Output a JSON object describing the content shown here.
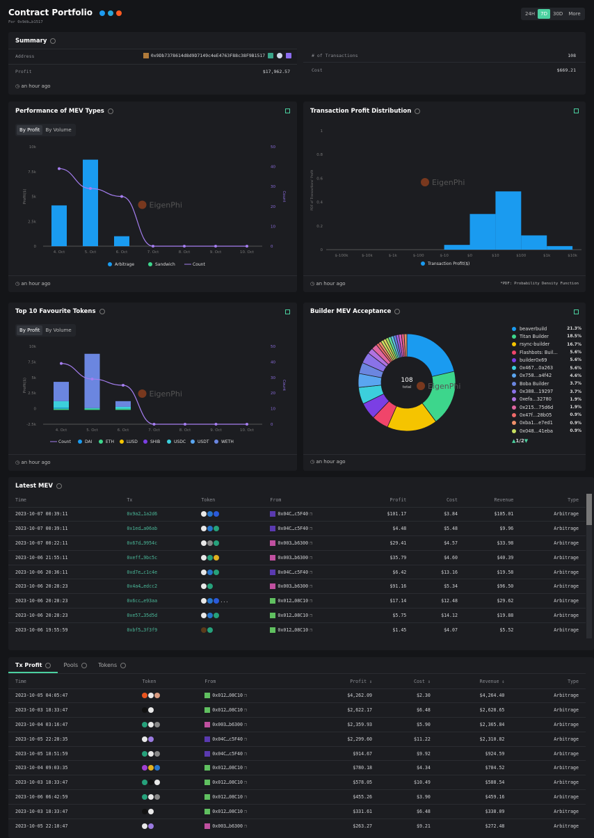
{
  "header": {
    "title": "Contract Portfolio",
    "subtitle": "For 0x9db…b1517",
    "social_icons": [
      "twitter-icon",
      "telegram-icon",
      "reddit-icon"
    ],
    "ranges": [
      "24H",
      "7D",
      "30D",
      "More"
    ],
    "active_range": "7D"
  },
  "summary": {
    "title": "Summary",
    "address_label": "Address",
    "address": "0x9Db7378614d8d9D7149c4eE4763F88c38F9B1517",
    "profit_label": "Profit",
    "profit": "$17,962.57",
    "tx_label": "# of Transactions",
    "tx_count": "108",
    "cost_label": "Cost",
    "cost": "$669.21",
    "updated": "an hour ago"
  },
  "mev_types": {
    "title": "Performance of MEV Types",
    "toggle": [
      "By Profit",
      "By Volume"
    ],
    "updated": "an hour ago"
  },
  "profit_dist": {
    "title": "Transaction Profit Distribution",
    "updated": "an hour ago",
    "footnote": "*PDF: Probability Density Function"
  },
  "fav_tokens": {
    "title": "Top 10 Favourite Tokens",
    "toggle": [
      "By Profit",
      "By Volume"
    ],
    "updated": "an hour ago"
  },
  "builder": {
    "title": "Builder MEV Acceptance",
    "updated": "an hour ago"
  },
  "watermark": "EigenPhi",
  "chart_data": [
    {
      "type": "bar",
      "title": "Performance of MEV Types",
      "categories": [
        "4. Oct",
        "5. Oct",
        "6. Oct",
        "7. Oct",
        "8. Oct",
        "9. Oct",
        "10. Oct"
      ],
      "series": [
        {
          "name": "Arbitrage",
          "color": "#1a9bf0",
          "values": [
            4100,
            8700,
            1000,
            0,
            0,
            0,
            0
          ]
        },
        {
          "name": "Sandwich",
          "color": "#3dd68c",
          "values": [
            0,
            0,
            0,
            0,
            0,
            0,
            0
          ]
        },
        {
          "name": "Count",
          "type": "line",
          "axis": "right",
          "color": "#a57ef0",
          "values": [
            39,
            29,
            25,
            0,
            0,
            0,
            0
          ]
        }
      ],
      "ylabel": "Profit($)",
      "y2label": "Count",
      "ylim": [
        0,
        10000
      ],
      "y2lim": [
        0,
        50
      ],
      "yticks": [
        "0",
        "2.5k",
        "5k",
        "7.5k",
        "10k"
      ],
      "y2ticks": [
        "0",
        "10",
        "20",
        "30",
        "40",
        "50"
      ],
      "legend": "bottom"
    },
    {
      "type": "bar",
      "title": "Transaction Profit Distribution",
      "categories": [
        "$-100k",
        "$-10k",
        "$-1k",
        "$-100",
        "$-10",
        "$0",
        "$10",
        "$100",
        "$1k",
        "$10k"
      ],
      "bins": [
        {
          "from": "$-10",
          "to": "$0",
          "pdf": 0.04
        },
        {
          "from": "$0",
          "to": "$10",
          "pdf": 0.3
        },
        {
          "from": "$10",
          "to": "$100",
          "pdf": 0.49
        },
        {
          "from": "$100",
          "to": "$1k",
          "pdf": 0.12
        },
        {
          "from": "$1k",
          "to": "$10k",
          "pdf": 0.03
        }
      ],
      "series_name": "Transaction Profit($)",
      "ylabel": "PDF of Transactions' Profit",
      "ylim": [
        0,
        1
      ],
      "yticks": [
        "0",
        "0.2",
        "0.4",
        "0.6",
        "0.8",
        "1"
      ],
      "legend": "bottom"
    },
    {
      "type": "bar",
      "title": "Top 10 Favourite Tokens",
      "stacked": true,
      "categories": [
        "4. Oct",
        "5. Oct",
        "6. Oct",
        "7. Oct",
        "8. Oct",
        "9. Oct",
        "10. Oct"
      ],
      "series": [
        {
          "name": "Count",
          "type": "line",
          "axis": "right",
          "color": "#a57ef0",
          "values": [
            39,
            29,
            25,
            0,
            0,
            0,
            0
          ]
        },
        {
          "name": "DAI",
          "color": "#1a9bf0",
          "values": [
            150,
            0,
            0,
            0,
            0,
            0,
            0
          ]
        },
        {
          "name": "ETH",
          "color": "#3dd68c",
          "values": [
            -200,
            -200,
            -200,
            0,
            0,
            0,
            0
          ]
        },
        {
          "name": "LUSD",
          "color": "#f5c400",
          "values": [
            0,
            0,
            0,
            0,
            0,
            0,
            0
          ]
        },
        {
          "name": "SHIB",
          "color": "#7b3fe4",
          "values": [
            0,
            0,
            0,
            0,
            0,
            0,
            0
          ]
        },
        {
          "name": "USDC",
          "color": "#3ccfdc",
          "values": [
            1050,
            100,
            300,
            0,
            0,
            0,
            0
          ]
        },
        {
          "name": "USDT",
          "color": "#5aa6f0",
          "values": [
            0,
            0,
            0,
            0,
            0,
            0,
            0
          ]
        },
        {
          "name": "WETH",
          "color": "#6b86e0",
          "values": [
            3100,
            8700,
            900,
            0,
            0,
            0,
            0
          ]
        }
      ],
      "ylabel": "Profit($)",
      "y2label": "Count",
      "ylim": [
        -2500,
        10000
      ],
      "y2lim": [
        0,
        50
      ],
      "yticks": [
        "-2.5k",
        "0",
        "2.5k",
        "5k",
        "7.5k",
        "10k"
      ],
      "y2ticks": [
        "0",
        "10",
        "20",
        "30",
        "40",
        "50"
      ],
      "legend": "bottom"
    },
    {
      "type": "pie",
      "title": "Builder MEV Acceptance",
      "center_value": "108",
      "center_label": "total",
      "page": "1/2",
      "slices": [
        {
          "name": "beaverbuild",
          "pct": "21.3%",
          "value": 21.3,
          "color": "#1a9bf0"
        },
        {
          "name": "Titan Builder",
          "pct": "18.5%",
          "value": 18.5,
          "color": "#3dd68c"
        },
        {
          "name": "rsync-builder",
          "pct": "16.7%",
          "value": 16.7,
          "color": "#f5c400"
        },
        {
          "name": "Flashbots: Buil…",
          "pct": "5.6%",
          "value": 5.6,
          "color": "#f0456a"
        },
        {
          "name": "builder0x69",
          "pct": "5.6%",
          "value": 5.6,
          "color": "#7b3fe4"
        },
        {
          "name": "0x467…0a263",
          "pct": "5.6%",
          "value": 5.6,
          "color": "#3ccfdc"
        },
        {
          "name": "0x758…a4f42",
          "pct": "4.6%",
          "value": 4.6,
          "color": "#5aa6f0"
        },
        {
          "name": "Boba Builder",
          "pct": "3.7%",
          "value": 3.7,
          "color": "#6b86e0"
        },
        {
          "name": "0x388…19297",
          "pct": "3.7%",
          "value": 3.7,
          "color": "#8a72e8"
        },
        {
          "name": "0xefa…32780",
          "pct": "1.9%",
          "value": 1.9,
          "color": "#b072e0"
        },
        {
          "name": "0x215…75d6d",
          "pct": "1.9%",
          "value": 1.9,
          "color": "#e066a0"
        },
        {
          "name": "0x47f…28b05",
          "pct": "0.9%",
          "value": 0.9,
          "color": "#f06a6a"
        },
        {
          "name": "0xba1…e7ed1",
          "pct": "0.9%",
          "value": 0.9,
          "color": "#f0906a"
        },
        {
          "name": "0x048…41eba",
          "pct": "0.9%",
          "value": 0.9,
          "color": "#c8e060"
        }
      ],
      "remaining_page_values": [
        0.9,
        0.9,
        0.9,
        0.9,
        0.9,
        0.9,
        0.9,
        0.9,
        0.9
      ]
    }
  ],
  "latest": {
    "title": "Latest MEV",
    "columns": [
      "Time",
      "Tx",
      "Token",
      "From",
      "Profit",
      "Cost",
      "Revenue",
      "Type"
    ],
    "rows": [
      [
        "2023-10-07 00:39:11",
        "0x9a2…1a2d6",
        [
          "eth",
          "usdc",
          "link"
        ],
        "0x04C…c5F40",
        "$101.17",
        "$3.84",
        "$105.01",
        "Arbitrage",
        "p"
      ],
      [
        "2023-10-07 00:39:11",
        "0x1ed…a06ab",
        [
          "eth",
          "usdc",
          "usdt"
        ],
        "0x04C…c5F40",
        "$4.48",
        "$5.48",
        "$9.96",
        "Arbitrage",
        "p"
      ],
      [
        "2023-10-07 00:22:11",
        "0x67d…9954c",
        [
          "eth",
          "dash",
          "usdt"
        ],
        "0x003…b6300",
        "$29.41",
        "$4.57",
        "$33.98",
        "Arbitrage",
        "m"
      ],
      [
        "2023-10-06 21:55:11",
        "0xeff…9bc5c",
        [
          "eth",
          "usdt",
          "gold"
        ],
        "0x003…b6300",
        "$35.79",
        "$4.60",
        "$40.39",
        "Arbitrage",
        "m"
      ],
      [
        "2023-10-06 20:36:11",
        "0xd7e…c1c4e",
        [
          "eth",
          "usdc",
          "usdt"
        ],
        "0x04C…c5F40",
        "$6.42",
        "$13.16",
        "$19.58",
        "Arbitrage",
        "p"
      ],
      [
        "2023-10-06 20:28:23",
        "0x4a4…edcc2",
        [
          "eth",
          "usdt"
        ],
        "0x003…b6300",
        "$91.16",
        "$5.34",
        "$96.50",
        "Arbitrage",
        "m"
      ],
      [
        "2023-10-06 20:28:23",
        "0x6cc…e93aa",
        [
          "eth",
          "usdc",
          "link",
          "more"
        ],
        "0x012…08C10",
        "$17.14",
        "$12.48",
        "$29.62",
        "Arbitrage",
        "g"
      ],
      [
        "2023-10-06 20:28:23",
        "0xe57…35d5d",
        [
          "eth",
          "usdc",
          "usdt"
        ],
        "0x012…08C10",
        "$5.75",
        "$14.12",
        "$19.88",
        "Arbitrage",
        "g"
      ],
      [
        "2023-10-06 19:55:59",
        "0xbf5…3f3f9",
        [
          "dot",
          "usdt"
        ],
        "0x012…08C10",
        "$1.45",
        "$4.07",
        "$5.52",
        "Arbitrage",
        "g"
      ]
    ]
  },
  "bottom": {
    "tabs": [
      "Tx Profit",
      "Pools",
      "Tokens"
    ],
    "active_tab": "Tx Profit",
    "columns": [
      "Time",
      "Token",
      "From",
      "Profit",
      "Cost",
      "Revenue",
      "Type"
    ],
    "rows": [
      [
        "2023-10-05 04:05:47",
        [
          "shib",
          "eth",
          "peach"
        ],
        "0x012…08C10",
        "$4,262.09",
        "$2.30",
        "$4,264.40",
        "Arbitrage",
        "g"
      ],
      [
        "2023-10-03 18:33:47",
        [
          "black",
          "eth"
        ],
        "0x012…08C10",
        "$2,622.17",
        "$6.48",
        "$2,628.65",
        "Arbitrage",
        "g"
      ],
      [
        "2023-10-04 03:16:47",
        [
          "usdt",
          "eth",
          "dash"
        ],
        "0x003…b6300",
        "$2,359.93",
        "$5.90",
        "$2,365.84",
        "Arbitrage",
        "m"
      ],
      [
        "2023-10-05 22:28:35",
        [
          "eth",
          "aave"
        ],
        "0x04C…c5F40",
        "$2,299.60",
        "$11.22",
        "$2,310.82",
        "Arbitrage",
        "p"
      ],
      [
        "2023-10-05 18:51:59",
        [
          "usdt",
          "eth",
          "dash"
        ],
        "0x04C…c5F40",
        "$914.67",
        "$9.92",
        "$924.59",
        "Arbitrage",
        "p"
      ],
      [
        "2023-10-04 09:03:35",
        [
          "purple",
          "gold",
          "usdc"
        ],
        "0x012…08C10",
        "$780.18",
        "$4.34",
        "$784.52",
        "Arbitrage",
        "g"
      ],
      [
        "2023-10-03 18:33:47",
        [
          "usdt",
          "black",
          "eth"
        ],
        "0x012…08C10",
        "$578.05",
        "$10.49",
        "$588.54",
        "Arbitrage",
        "g"
      ],
      [
        "2023-10-06 06:42:59",
        [
          "usdt",
          "eth",
          "dash"
        ],
        "0x012…08C10",
        "$455.26",
        "$3.90",
        "$459.16",
        "Arbitrage",
        "g"
      ],
      [
        "2023-10-03 18:33:47",
        [
          "black",
          "eth"
        ],
        "0x012…08C10",
        "$331.61",
        "$6.48",
        "$338.09",
        "Arbitrage",
        "g"
      ],
      [
        "2023-10-05 22:10:47",
        [
          "eth",
          "aave"
        ],
        "0x003…b6300",
        "$263.27",
        "$9.21",
        "$272.48",
        "Arbitrage",
        "m"
      ]
    ]
  }
}
